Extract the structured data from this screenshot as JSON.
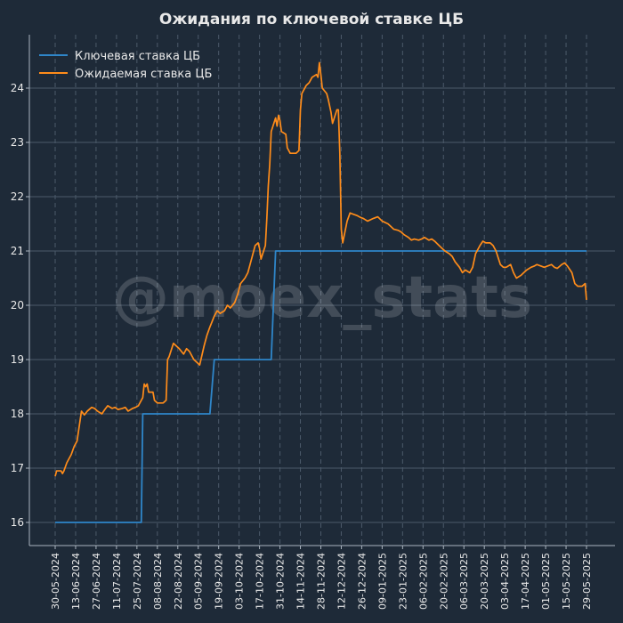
{
  "chart_data": {
    "type": "line",
    "title": "Ожидания по ключевой ставке ЦБ",
    "watermark": "@moex_stats",
    "xlabel": "",
    "ylabel": "",
    "x_range": [
      "2024-05-30",
      "2025-05-29"
    ],
    "ylim": [
      15.55,
      24.75
    ],
    "y_ticks": [
      16,
      17,
      18,
      19,
      20,
      21,
      22,
      23,
      24
    ],
    "x_ticks": [
      "30-05-2024",
      "13-06-2024",
      "27-06-2024",
      "11-07-2024",
      "25-07-2024",
      "08-08-2024",
      "22-08-2024",
      "05-09-2024",
      "19-09-2024",
      "03-10-2024",
      "17-10-2024",
      "31-10-2024",
      "14-11-2024",
      "28-11-2024",
      "12-12-2024",
      "26-12-2024",
      "09-01-2025",
      "23-01-2025",
      "06-02-2025",
      "20-02-2025",
      "06-03-2025",
      "20-03-2025",
      "03-04-2025",
      "17-04-2025",
      "01-05-2025",
      "15-05-2025",
      "29-05-2025"
    ],
    "x_tick_dates": [
      "2024-05-30",
      "2024-06-13",
      "2024-06-27",
      "2024-07-11",
      "2024-07-25",
      "2024-08-08",
      "2024-08-22",
      "2024-09-05",
      "2024-09-19",
      "2024-10-03",
      "2024-10-17",
      "2024-10-31",
      "2024-11-14",
      "2024-11-28",
      "2024-12-12",
      "2024-12-26",
      "2025-01-09",
      "2025-01-23",
      "2025-02-06",
      "2025-02-20",
      "2025-03-06",
      "2025-03-20",
      "2025-04-03",
      "2025-04-17",
      "2025-05-01",
      "2025-05-15",
      "2025-05-29"
    ],
    "grid": true,
    "legend": "top-left",
    "colors": {
      "background": "#1e2a38",
      "grid": "#4c5a6a",
      "axis": "#aab4bf",
      "text": "#e8e8e8",
      "series_key": "#2f86c9",
      "series_expected": "#ff8c1a"
    },
    "series": [
      {
        "name": "Ключевая ставка ЦБ",
        "color": "#2f86c9",
        "step": true,
        "points": [
          [
            "2024-05-30",
            16
          ],
          [
            "2024-07-28",
            16
          ],
          [
            "2024-07-29",
            18
          ],
          [
            "2024-09-13",
            18
          ],
          [
            "2024-09-16",
            19
          ],
          [
            "2024-10-25",
            19
          ],
          [
            "2024-10-28",
            21
          ],
          [
            "2025-05-29",
            21
          ]
        ]
      },
      {
        "name": "Ожидаемая ставка ЦБ",
        "color": "#ff8c1a",
        "points": [
          [
            "2024-05-30",
            16.85
          ],
          [
            "2024-05-31",
            16.95
          ],
          [
            "2024-06-03",
            16.95
          ],
          [
            "2024-06-04",
            16.9
          ],
          [
            "2024-06-05",
            16.95
          ],
          [
            "2024-06-07",
            17.1
          ],
          [
            "2024-06-10",
            17.25
          ],
          [
            "2024-06-12",
            17.4
          ],
          [
            "2024-06-14",
            17.5
          ],
          [
            "2024-06-17",
            18.05
          ],
          [
            "2024-06-19",
            17.98
          ],
          [
            "2024-06-21",
            18.05
          ],
          [
            "2024-06-24",
            18.12
          ],
          [
            "2024-06-26",
            18.1
          ],
          [
            "2024-06-28",
            18.05
          ],
          [
            "2024-07-01",
            18.0
          ],
          [
            "2024-07-03",
            18.08
          ],
          [
            "2024-07-05",
            18.15
          ],
          [
            "2024-07-08",
            18.1
          ],
          [
            "2024-07-10",
            18.12
          ],
          [
            "2024-07-12",
            18.08
          ],
          [
            "2024-07-15",
            18.1
          ],
          [
            "2024-07-17",
            18.12
          ],
          [
            "2024-07-19",
            18.05
          ],
          [
            "2024-07-22",
            18.1
          ],
          [
            "2024-07-24",
            18.12
          ],
          [
            "2024-07-26",
            18.15
          ],
          [
            "2024-07-29",
            18.3
          ],
          [
            "2024-07-30",
            18.55
          ],
          [
            "2024-07-31",
            18.5
          ],
          [
            "2024-08-01",
            18.55
          ],
          [
            "2024-08-02",
            18.4
          ],
          [
            "2024-08-05",
            18.4
          ],
          [
            "2024-08-06",
            18.25
          ],
          [
            "2024-08-08",
            18.2
          ],
          [
            "2024-08-12",
            18.2
          ],
          [
            "2024-08-14",
            18.25
          ],
          [
            "2024-08-15",
            19.0
          ],
          [
            "2024-08-16",
            19.05
          ],
          [
            "2024-08-19",
            19.3
          ],
          [
            "2024-08-21",
            19.25
          ],
          [
            "2024-08-23",
            19.2
          ],
          [
            "2024-08-26",
            19.1
          ],
          [
            "2024-08-28",
            19.2
          ],
          [
            "2024-08-30",
            19.15
          ],
          [
            "2024-09-02",
            19.0
          ],
          [
            "2024-09-04",
            18.95
          ],
          [
            "2024-09-06",
            18.9
          ],
          [
            "2024-09-09",
            19.25
          ],
          [
            "2024-09-11",
            19.45
          ],
          [
            "2024-09-13",
            19.6
          ],
          [
            "2024-09-16",
            19.8
          ],
          [
            "2024-09-18",
            19.9
          ],
          [
            "2024-09-20",
            19.85
          ],
          [
            "2024-09-23",
            19.9
          ],
          [
            "2024-09-25",
            20.0
          ],
          [
            "2024-09-27",
            19.95
          ],
          [
            "2024-09-30",
            20.05
          ],
          [
            "2024-10-02",
            20.2
          ],
          [
            "2024-10-04",
            20.4
          ],
          [
            "2024-10-07",
            20.5
          ],
          [
            "2024-10-09",
            20.6
          ],
          [
            "2024-10-11",
            20.8
          ],
          [
            "2024-10-14",
            21.1
          ],
          [
            "2024-10-16",
            21.15
          ],
          [
            "2024-10-17",
            21.05
          ],
          [
            "2024-10-18",
            20.85
          ],
          [
            "2024-10-21",
            21.1
          ],
          [
            "2024-10-22",
            21.6
          ],
          [
            "2024-10-23",
            22.2
          ],
          [
            "2024-10-24",
            22.6
          ],
          [
            "2024-10-25",
            23.2
          ],
          [
            "2024-10-28",
            23.45
          ],
          [
            "2024-10-29",
            23.3
          ],
          [
            "2024-10-30",
            23.5
          ],
          [
            "2024-10-31",
            23.4
          ],
          [
            "2024-11-01",
            23.2
          ],
          [
            "2024-11-04",
            23.15
          ],
          [
            "2024-11-05",
            22.9
          ],
          [
            "2024-11-07",
            22.8
          ],
          [
            "2024-11-11",
            22.8
          ],
          [
            "2024-11-13",
            22.85
          ],
          [
            "2024-11-14",
            23.6
          ],
          [
            "2024-11-15",
            23.9
          ],
          [
            "2024-11-18",
            24.05
          ],
          [
            "2024-11-20",
            24.1
          ],
          [
            "2024-11-22",
            24.2
          ],
          [
            "2024-11-25",
            24.25
          ],
          [
            "2024-11-26",
            24.2
          ],
          [
            "2024-11-27",
            24.47
          ],
          [
            "2024-11-28",
            24.25
          ],
          [
            "2024-11-29",
            24.0
          ],
          [
            "2024-12-02",
            23.9
          ],
          [
            "2024-12-03",
            23.8
          ],
          [
            "2024-12-05",
            23.55
          ],
          [
            "2024-12-06",
            23.35
          ],
          [
            "2024-12-09",
            23.6
          ],
          [
            "2024-12-10",
            23.6
          ],
          [
            "2024-12-11",
            22.8
          ],
          [
            "2024-12-12",
            21.4
          ],
          [
            "2024-12-13",
            21.15
          ],
          [
            "2024-12-16",
            21.55
          ],
          [
            "2024-12-18",
            21.7
          ],
          [
            "2024-12-20",
            21.68
          ],
          [
            "2024-12-23",
            21.65
          ],
          [
            "2024-12-25",
            21.62
          ],
          [
            "2024-12-27",
            21.6
          ],
          [
            "2024-12-30",
            21.55
          ],
          [
            "2025-01-03",
            21.6
          ],
          [
            "2025-01-06",
            21.63
          ],
          [
            "2025-01-09",
            21.55
          ],
          [
            "2025-01-13",
            21.5
          ],
          [
            "2025-01-15",
            21.45
          ],
          [
            "2025-01-17",
            21.4
          ],
          [
            "2025-01-20",
            21.38
          ],
          [
            "2025-01-22",
            21.35
          ],
          [
            "2025-01-24",
            21.3
          ],
          [
            "2025-01-27",
            21.25
          ],
          [
            "2025-01-29",
            21.2
          ],
          [
            "2025-01-31",
            21.22
          ],
          [
            "2025-02-03",
            21.2
          ],
          [
            "2025-02-05",
            21.22
          ],
          [
            "2025-02-07",
            21.25
          ],
          [
            "2025-02-10",
            21.2
          ],
          [
            "2025-02-12",
            21.22
          ],
          [
            "2025-02-14",
            21.18
          ],
          [
            "2025-02-17",
            21.1
          ],
          [
            "2025-02-19",
            21.05
          ],
          [
            "2025-02-21",
            21.0
          ],
          [
            "2025-02-24",
            20.95
          ],
          [
            "2025-02-26",
            20.9
          ],
          [
            "2025-02-28",
            20.8
          ],
          [
            "2025-03-03",
            20.7
          ],
          [
            "2025-03-05",
            20.6
          ],
          [
            "2025-03-07",
            20.65
          ],
          [
            "2025-03-10",
            20.6
          ],
          [
            "2025-03-12",
            20.7
          ],
          [
            "2025-03-14",
            20.95
          ],
          [
            "2025-03-17",
            21.1
          ],
          [
            "2025-03-19",
            21.18
          ],
          [
            "2025-03-21",
            21.15
          ],
          [
            "2025-03-24",
            21.15
          ],
          [
            "2025-03-26",
            21.1
          ],
          [
            "2025-03-28",
            21.0
          ],
          [
            "2025-03-31",
            20.75
          ],
          [
            "2025-04-02",
            20.7
          ],
          [
            "2025-04-04",
            20.7
          ],
          [
            "2025-04-07",
            20.75
          ],
          [
            "2025-04-09",
            20.6
          ],
          [
            "2025-04-11",
            20.5
          ],
          [
            "2025-04-14",
            20.55
          ],
          [
            "2025-04-16",
            20.6
          ],
          [
            "2025-04-18",
            20.65
          ],
          [
            "2025-04-21",
            20.7
          ],
          [
            "2025-04-23",
            20.72
          ],
          [
            "2025-04-25",
            20.75
          ],
          [
            "2025-04-28",
            20.72
          ],
          [
            "2025-04-30",
            20.7
          ],
          [
            "2025-05-05",
            20.75
          ],
          [
            "2025-05-07",
            20.7
          ],
          [
            "2025-05-09",
            20.68
          ],
          [
            "2025-05-12",
            20.75
          ],
          [
            "2025-05-14",
            20.78
          ],
          [
            "2025-05-16",
            20.72
          ],
          [
            "2025-05-19",
            20.6
          ],
          [
            "2025-05-21",
            20.4
          ],
          [
            "2025-05-23",
            20.35
          ],
          [
            "2025-05-26",
            20.35
          ],
          [
            "2025-05-28",
            20.4
          ],
          [
            "2025-05-29",
            20.1
          ]
        ]
      }
    ]
  }
}
